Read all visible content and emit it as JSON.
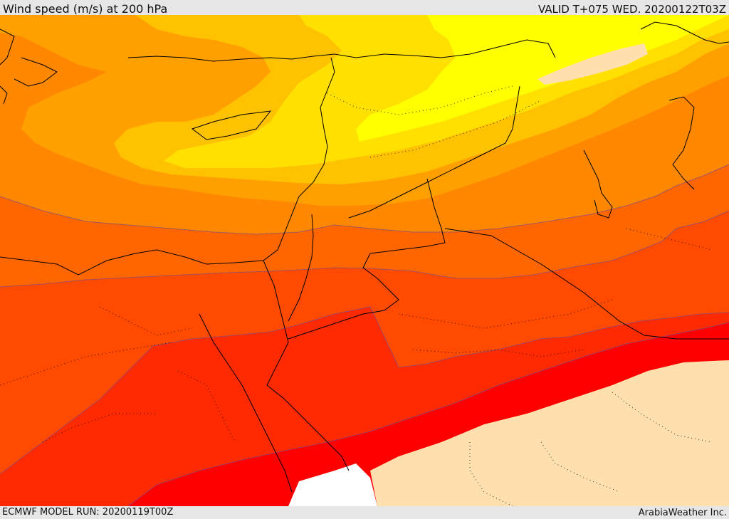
{
  "header": {
    "title": "Wind speed (m/s) at 200 hPa",
    "valid_time": "VALID T+075 WED. 20200122T03Z"
  },
  "footer": {
    "model_run": "ECMWF MODEL RUN: 20200119T00Z",
    "credit": "ArabiaWeather Inc."
  },
  "colors": {
    "band_lowest": "#ffdfae",
    "band_1": "#ffff00",
    "band_2": "#ffe000",
    "band_3": "#ffc200",
    "band_4": "#ffa000",
    "band_5": "#ff8800",
    "band_6": "#ff6600",
    "band_7": "#ff4a00",
    "band_8": "#ff2a00",
    "band_highest": "#ff0000",
    "missing_area": "#ffffff",
    "coastline": "#000000",
    "contour_line": "#7a4a8a"
  }
}
